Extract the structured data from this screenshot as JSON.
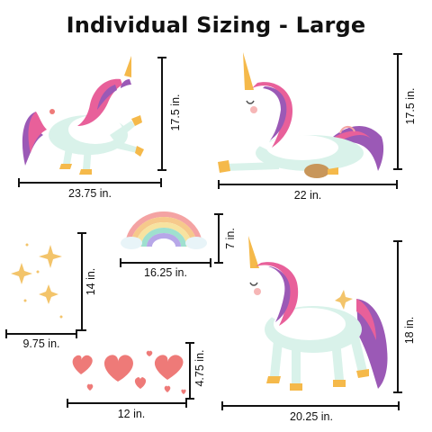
{
  "title": "Individual Sizing - Large",
  "items": [
    {
      "name": "unicorn-prancing",
      "width": "23.75 in.",
      "height": "17.5 in."
    },
    {
      "name": "unicorn-lying",
      "width": "22 in.",
      "height": "17.5 in."
    },
    {
      "name": "rainbow",
      "width": "16.25 in.",
      "height": "7 in."
    },
    {
      "name": "sparkles",
      "width": "9.75 in.",
      "height": "14 in."
    },
    {
      "name": "unicorn-standing",
      "width": "20.25 in.",
      "height": "18 in."
    },
    {
      "name": "hearts",
      "width": "12 in.",
      "height": "4.75 in."
    }
  ],
  "colors": {
    "mane_pink": "#e8609a",
    "mane_purple": "#9b59b6",
    "horn_gold": "#f5b94a",
    "body_mint": "#d9f2ea",
    "heart_coral": "#ee7a78",
    "sparkle_gold": "#f3c46a"
  }
}
